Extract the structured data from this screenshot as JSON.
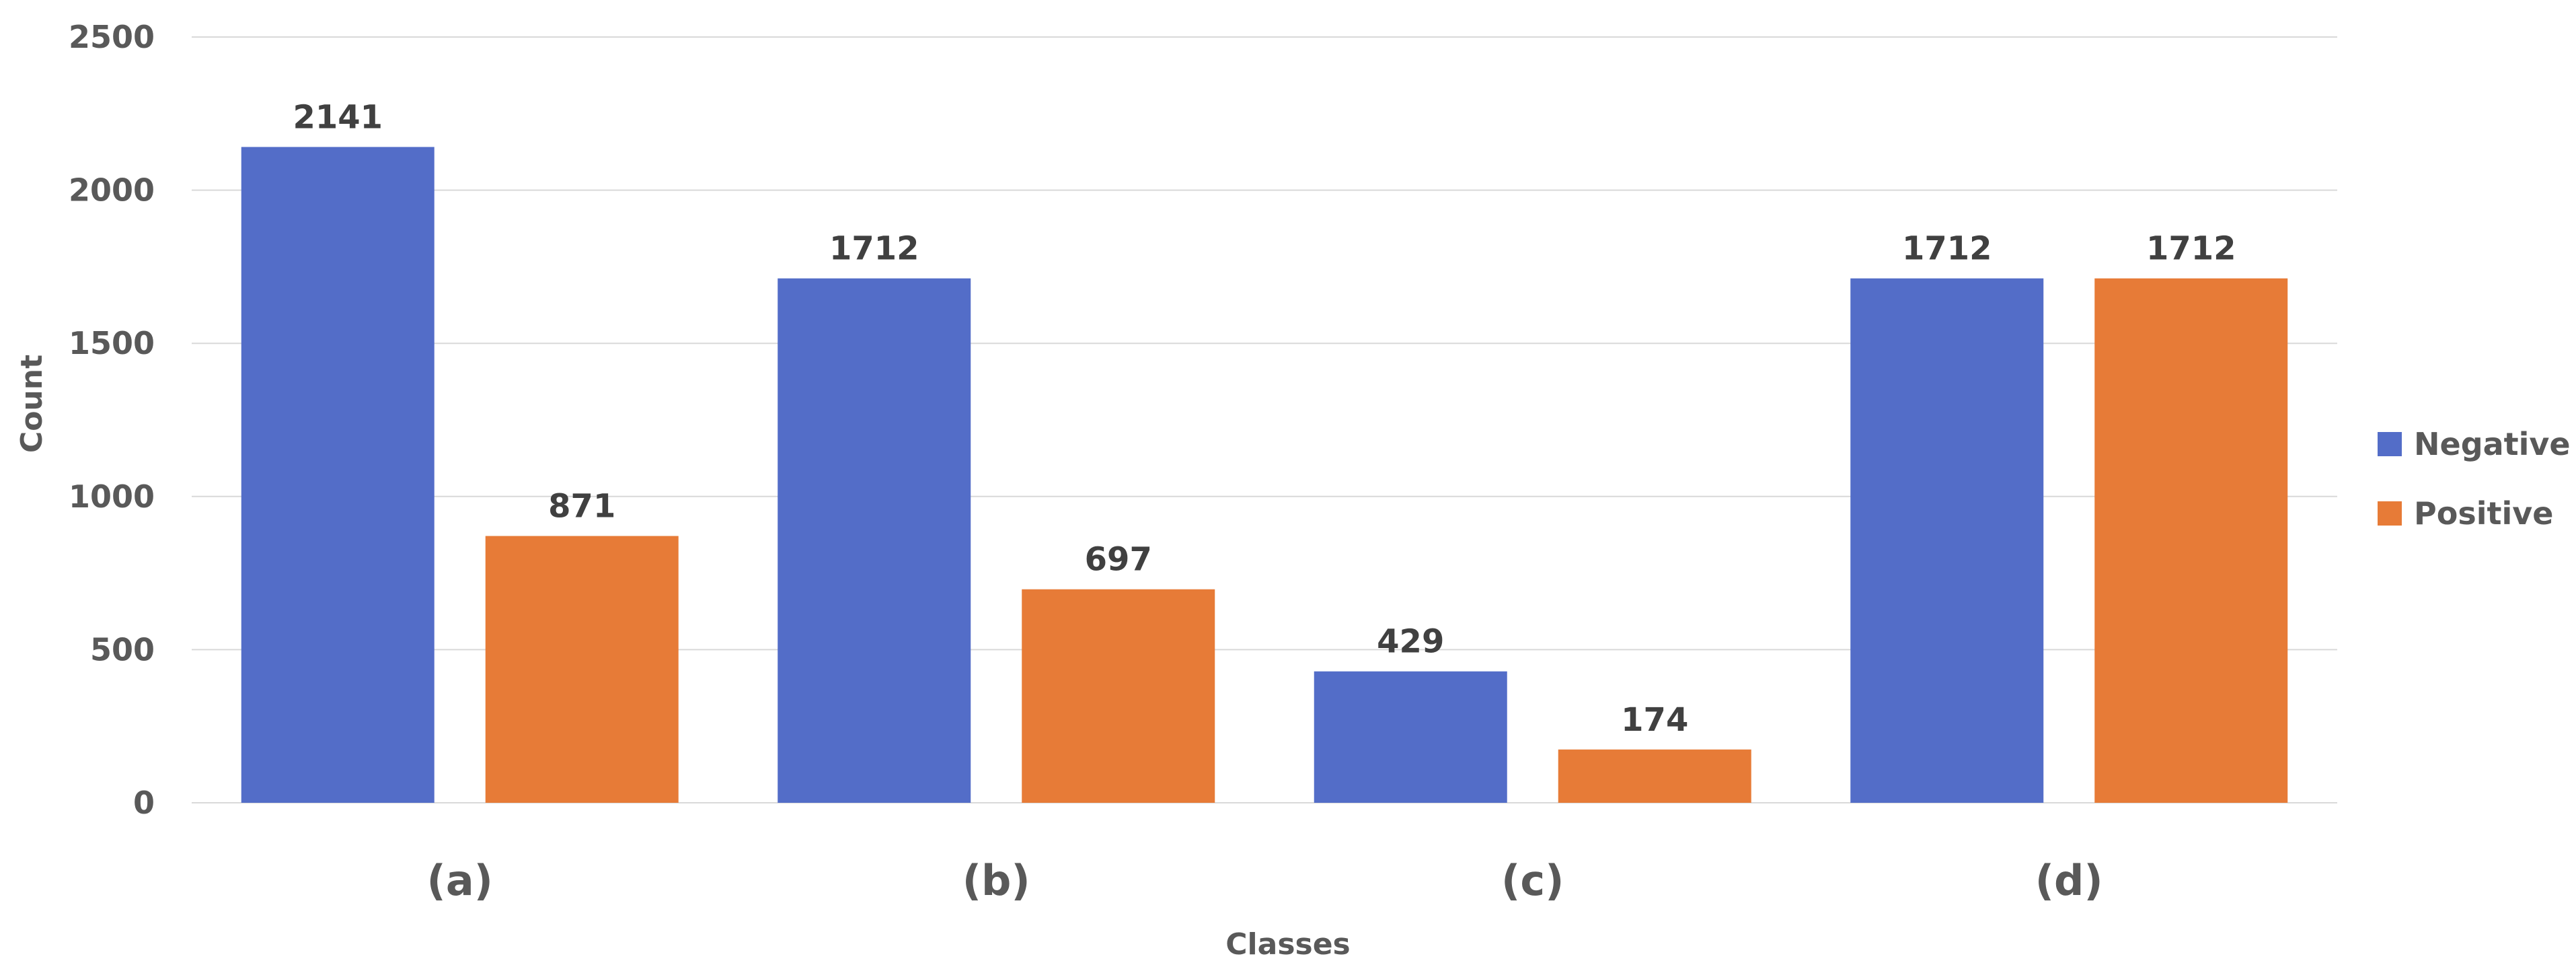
{
  "chart_data": {
    "type": "bar",
    "title": "",
    "xlabel": "Classes",
    "ylabel": "Count",
    "ylim": [
      0,
      2500
    ],
    "yticks": [
      0,
      500,
      1000,
      1500,
      2000,
      2500
    ],
    "grid": true,
    "legend_position": "right",
    "categories": [
      "(a)",
      "(b)",
      "(c)",
      "(d)"
    ],
    "series": [
      {
        "name": "Negative",
        "color": "#536dc8",
        "values": [
          2141,
          1712,
          429,
          1712
        ]
      },
      {
        "name": "Positive",
        "color": "#e77b37",
        "values": [
          871,
          697,
          174,
          1712
        ]
      }
    ]
  }
}
